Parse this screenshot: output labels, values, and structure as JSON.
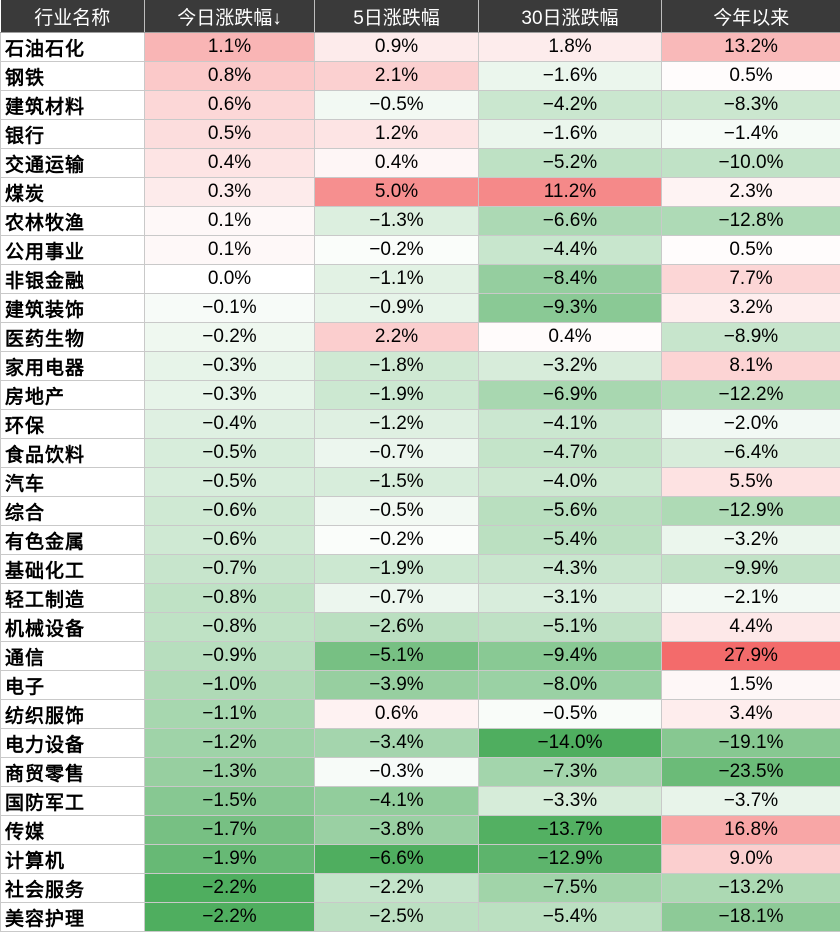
{
  "chart_data": {
    "type": "table",
    "columns": [
      "行业名称",
      "今日涨跌幅↓",
      "5日涨跌幅",
      "30日涨跌幅",
      "今年以来"
    ],
    "colors": {
      "positive_max": "#f36b6b",
      "negative_max": "#4fae5f",
      "neutral": "#ffffff"
    },
    "rows": [
      {
        "name": "石油石化",
        "values": [
          1.1,
          0.9,
          1.8,
          13.2
        ]
      },
      {
        "name": "钢铁",
        "values": [
          0.8,
          2.1,
          -1.6,
          0.5
        ]
      },
      {
        "name": "建筑材料",
        "values": [
          0.6,
          -0.5,
          -4.2,
          -8.3
        ]
      },
      {
        "name": "银行",
        "values": [
          0.5,
          1.2,
          -1.6,
          -1.4
        ]
      },
      {
        "name": "交通运输",
        "values": [
          0.4,
          0.4,
          -5.2,
          -10.0
        ]
      },
      {
        "name": "煤炭",
        "values": [
          0.3,
          5.0,
          11.2,
          2.3
        ]
      },
      {
        "name": "农林牧渔",
        "values": [
          0.1,
          -1.3,
          -6.6,
          -12.8
        ]
      },
      {
        "name": "公用事业",
        "values": [
          0.1,
          -0.2,
          -4.4,
          0.5
        ]
      },
      {
        "name": "非银金融",
        "values": [
          0.0,
          -1.1,
          -8.4,
          7.7
        ]
      },
      {
        "name": "建筑装饰",
        "values": [
          -0.1,
          -0.9,
          -9.3,
          3.2
        ]
      },
      {
        "name": "医药生物",
        "values": [
          -0.2,
          2.2,
          0.4,
          -8.9
        ]
      },
      {
        "name": "家用电器",
        "values": [
          -0.3,
          -1.8,
          -3.2,
          8.1
        ]
      },
      {
        "name": "房地产",
        "values": [
          -0.3,
          -1.9,
          -6.9,
          -12.2
        ]
      },
      {
        "name": "环保",
        "values": [
          -0.4,
          -1.2,
          -4.1,
          -2.0
        ]
      },
      {
        "name": "食品饮料",
        "values": [
          -0.5,
          -0.7,
          -4.7,
          -6.4
        ]
      },
      {
        "name": "汽车",
        "values": [
          -0.5,
          -1.5,
          -4.0,
          5.5
        ]
      },
      {
        "name": "综合",
        "values": [
          -0.6,
          -0.5,
          -5.6,
          -12.9
        ]
      },
      {
        "name": "有色金属",
        "values": [
          -0.6,
          -0.2,
          -5.4,
          -3.2
        ]
      },
      {
        "name": "基础化工",
        "values": [
          -0.7,
          -1.9,
          -4.3,
          -9.9
        ]
      },
      {
        "name": "轻工制造",
        "values": [
          -0.8,
          -0.7,
          -3.1,
          -2.1
        ]
      },
      {
        "name": "机械设备",
        "values": [
          -0.8,
          -2.6,
          -5.1,
          4.4
        ]
      },
      {
        "name": "通信",
        "values": [
          -0.9,
          -5.1,
          -9.4,
          27.9
        ]
      },
      {
        "name": "电子",
        "values": [
          -1.0,
          -3.9,
          -8.0,
          1.5
        ]
      },
      {
        "name": "纺织服饰",
        "values": [
          -1.1,
          0.6,
          -0.5,
          3.4
        ]
      },
      {
        "name": "电力设备",
        "values": [
          -1.2,
          -3.4,
          -14.0,
          -19.1
        ]
      },
      {
        "name": "商贸零售",
        "values": [
          -1.3,
          -0.3,
          -7.3,
          -23.5
        ]
      },
      {
        "name": "国防军工",
        "values": [
          -1.5,
          -4.1,
          -3.3,
          -3.7
        ]
      },
      {
        "name": "传媒",
        "values": [
          -1.7,
          -3.8,
          -13.7,
          16.8
        ]
      },
      {
        "name": "计算机",
        "values": [
          -1.9,
          -6.6,
          -12.9,
          9.0
        ]
      },
      {
        "name": "社会服务",
        "values": [
          -2.2,
          -2.2,
          -7.5,
          -13.2
        ]
      },
      {
        "name": "美容护理",
        "values": [
          -2.2,
          -2.5,
          -5.4,
          -18.1
        ]
      }
    ]
  }
}
